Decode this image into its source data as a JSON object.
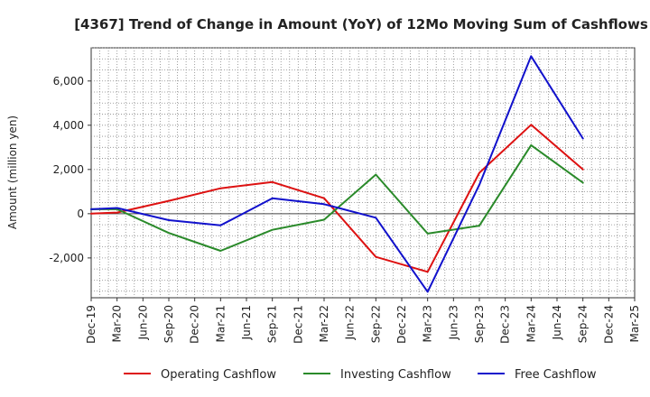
{
  "chart_data": {
    "type": "line",
    "title": "[4367]  Trend of Change in Amount (YoY) of 12Mo Moving Sum of Cashflows",
    "xlabel": "",
    "ylabel": "Amount (million yen)",
    "categories": [
      "Dec-19",
      "Mar-20",
      "Jun-20",
      "Sep-20",
      "Dec-20",
      "Mar-21",
      "Jun-21",
      "Sep-21",
      "Dec-21",
      "Mar-22",
      "Jun-22",
      "Sep-22",
      "Dec-22",
      "Mar-23",
      "Jun-23",
      "Sep-23",
      "Dec-23",
      "Mar-24",
      "Jun-24",
      "Sep-24",
      "Dec-24",
      "Mar-25"
    ],
    "ylim": [
      -3800,
      7500
    ],
    "yticks": [
      -2000,
      0,
      2000,
      4000,
      6000
    ],
    "ytick_labels": [
      "-2,000",
      "0",
      "2,000",
      "4,000",
      "6,000"
    ],
    "grid": true,
    "legend_position": "bottom",
    "series": [
      {
        "name": "Operating Cashflow",
        "color": "#dd1111",
        "points": [
          {
            "x": "Dec-19",
            "y": 0
          },
          {
            "x": "Mar-20",
            "y": 50
          },
          {
            "x": "Sep-20",
            "y": 580
          },
          {
            "x": "Mar-21",
            "y": 1150
          },
          {
            "x": "Sep-21",
            "y": 1430
          },
          {
            "x": "Mar-22",
            "y": 700
          },
          {
            "x": "Sep-22",
            "y": -1950
          },
          {
            "x": "Mar-23",
            "y": -2630
          },
          {
            "x": "Sep-23",
            "y": 1850
          },
          {
            "x": "Mar-24",
            "y": 4020
          },
          {
            "x": "Sep-24",
            "y": 2000
          }
        ]
      },
      {
        "name": "Investing Cashflow",
        "color": "#2a8a2a",
        "points": [
          {
            "x": "Dec-19",
            "y": 200
          },
          {
            "x": "Mar-20",
            "y": 200
          },
          {
            "x": "Sep-20",
            "y": -870
          },
          {
            "x": "Mar-21",
            "y": -1680
          },
          {
            "x": "Sep-21",
            "y": -730
          },
          {
            "x": "Mar-22",
            "y": -270
          },
          {
            "x": "Sep-22",
            "y": 1770
          },
          {
            "x": "Mar-23",
            "y": -900
          },
          {
            "x": "Sep-23",
            "y": -540
          },
          {
            "x": "Mar-24",
            "y": 3100
          },
          {
            "x": "Sep-24",
            "y": 1400
          }
        ]
      },
      {
        "name": "Free Cashflow",
        "color": "#1111cc",
        "points": [
          {
            "x": "Dec-19",
            "y": 200
          },
          {
            "x": "Mar-20",
            "y": 260
          },
          {
            "x": "Sep-20",
            "y": -290
          },
          {
            "x": "Mar-21",
            "y": -530
          },
          {
            "x": "Sep-21",
            "y": 700
          },
          {
            "x": "Mar-22",
            "y": 430
          },
          {
            "x": "Sep-22",
            "y": -180
          },
          {
            "x": "Mar-23",
            "y": -3530
          },
          {
            "x": "Sep-23",
            "y": 1310
          },
          {
            "x": "Mar-24",
            "y": 7120
          },
          {
            "x": "Sep-24",
            "y": 3400
          }
        ]
      }
    ]
  }
}
